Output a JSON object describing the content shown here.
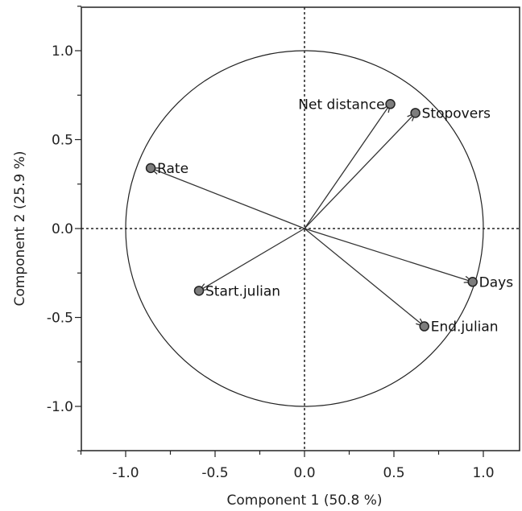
{
  "chart_data": {
    "type": "scatter",
    "subtype": "pca-loading-biplot",
    "xlabel": "Component 1  (50.8 %)",
    "ylabel": "Component 2  (25.9 %)",
    "xlim": [
      -1.25,
      1.25
    ],
    "ylim": [
      -1.25,
      1.25
    ],
    "xticks": [
      -1.0,
      -0.5,
      0.0,
      0.5,
      1.0
    ],
    "yticks": [
      -1.0,
      -0.5,
      0.0,
      0.5,
      1.0
    ],
    "xtick_labels": [
      "-1.0",
      "-0.5",
      "0.0",
      "0.5",
      "1.0"
    ],
    "ytick_labels": [
      "-1.0",
      "-0.5",
      "0.0",
      "0.5",
      "1.0"
    ],
    "unit_circle": true,
    "zero_lines": true,
    "grid": false,
    "points": [
      {
        "label": "Net distance",
        "x": 0.48,
        "y": 0.7
      },
      {
        "label": "Stopovers",
        "x": 0.62,
        "y": 0.65
      },
      {
        "label": "Rate",
        "x": -0.86,
        "y": 0.34
      },
      {
        "label": "Start.julian",
        "x": -0.59,
        "y": -0.35
      },
      {
        "label": "Days",
        "x": 0.94,
        "y": -0.3
      },
      {
        "label": "End.julian",
        "x": 0.67,
        "y": -0.55
      }
    ]
  }
}
